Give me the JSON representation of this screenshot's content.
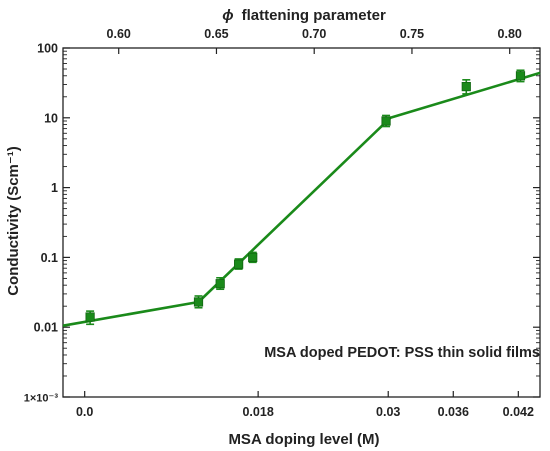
{
  "chart_data": {
    "type": "line",
    "annotation": "MSA doped PEDOT: PSS thin solid films",
    "xlabel": "MSA doping level (M)",
    "x2label_symbol": "ϕ",
    "x2label_text": "flattening parameter",
    "ylabel": "Conductivity (Scm⁻¹)",
    "ylog": true,
    "ylim": [
      0.001,
      100
    ],
    "grid": false,
    "xlim": [
      0,
      0.044
    ],
    "x_ticks": [
      {
        "value": 0.002,
        "label": "0.0"
      },
      {
        "value": 0.018,
        "label": "0.018"
      },
      {
        "value": 0.03,
        "label": "0.03"
      },
      {
        "value": 0.036,
        "label": "0.036"
      },
      {
        "value": 0.042,
        "label": "0.042"
      }
    ],
    "x2_ticks": [
      {
        "value": 0.6,
        "label": "0.60"
      },
      {
        "value": 0.65,
        "label": "0.65"
      },
      {
        "value": 0.7,
        "label": "0.70"
      },
      {
        "value": 0.75,
        "label": "0.75"
      },
      {
        "value": 0.8,
        "label": "0.80"
      }
    ],
    "x2lim": [
      0.5715,
      0.8155
    ],
    "y_ticks": [
      {
        "value": 100,
        "label": "100"
      },
      {
        "value": 10,
        "label": "10"
      },
      {
        "value": 1,
        "label": "1"
      },
      {
        "value": 0.1,
        "label": "0.1"
      },
      {
        "value": 0.01,
        "label": "0.01"
      },
      {
        "value": 0.001,
        "label": "1×10⁻³"
      }
    ],
    "series": [
      {
        "color": "#1a8a1a",
        "points": [
          {
            "x": 0.0025,
            "y": 0.014,
            "ylo": 0.011,
            "yhi": 0.017
          },
          {
            "x": 0.0125,
            "y": 0.023,
            "ylo": 0.019,
            "yhi": 0.028
          },
          {
            "x": 0.0145,
            "y": 0.042,
            "ylo": 0.035,
            "yhi": 0.051
          },
          {
            "x": 0.0162,
            "y": 0.08,
            "ylo": 0.068,
            "yhi": 0.095
          },
          {
            "x": 0.0175,
            "y": 0.1,
            "ylo": 0.085,
            "yhi": 0.118
          },
          {
            "x": 0.0298,
            "y": 9,
            "ylo": 7.5,
            "yhi": 10.8
          },
          {
            "x": 0.0372,
            "y": 28,
            "ylo": 22,
            "yhi": 35
          },
          {
            "x": 0.0422,
            "y": 40,
            "ylo": 33,
            "yhi": 48
          }
        ],
        "fit_line": [
          {
            "x": 0.0,
            "y": 0.0105
          },
          {
            "x": 0.0125,
            "y": 0.023
          },
          {
            "x": 0.0302,
            "y": 10
          },
          {
            "x": 0.044,
            "y": 44
          }
        ]
      }
    ]
  }
}
